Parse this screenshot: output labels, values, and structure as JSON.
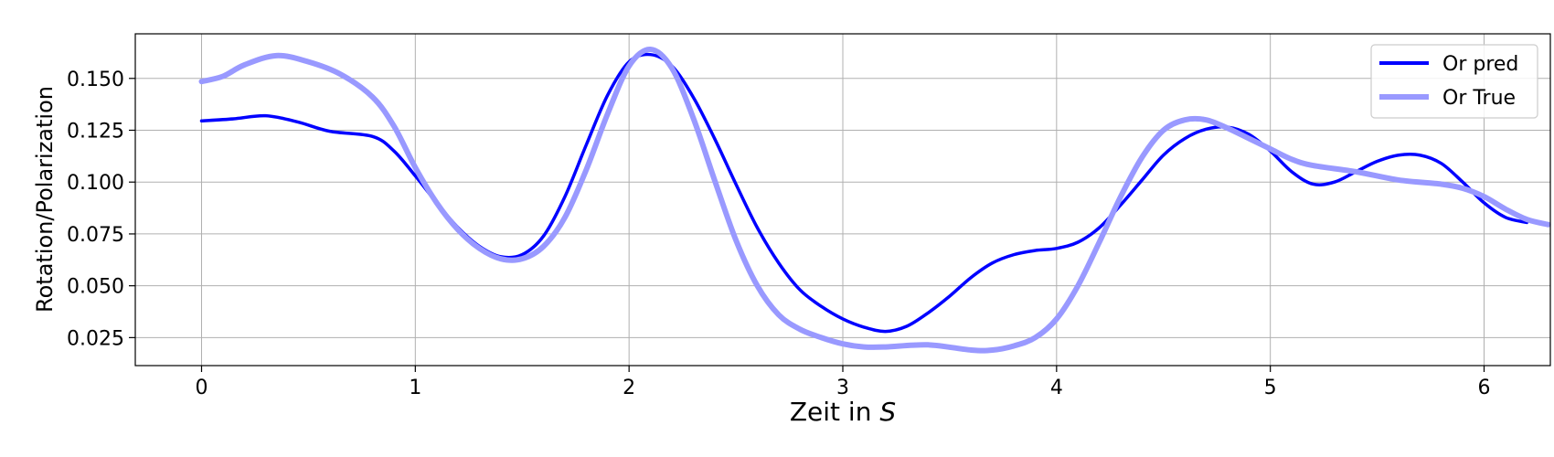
{
  "chart_data": {
    "type": "line",
    "xlabel": "Zeit in S",
    "ylabel": "Rotation/Polarization",
    "xlim": [
      -0.31,
      6.31
    ],
    "ylim": [
      0.0115,
      0.1715
    ],
    "xticks": [
      0,
      1,
      2,
      3,
      4,
      5,
      6
    ],
    "xtick_labels": [
      "0",
      "1",
      "2",
      "3",
      "4",
      "5",
      "6"
    ],
    "yticks": [
      0.025,
      0.05,
      0.075,
      0.1,
      0.125,
      0.15
    ],
    "ytick_labels": [
      "0.025",
      "0.050",
      "0.075",
      "0.100",
      "0.125",
      "0.150"
    ],
    "grid": true,
    "legend_position": "top-right",
    "series": [
      {
        "name": "Or pred",
        "color": "#0000ff",
        "x": [
          0,
          0.15,
          0.3,
          0.45,
          0.6,
          0.8,
          0.9,
          1.0,
          1.1,
          1.2,
          1.3,
          1.4,
          1.5,
          1.6,
          1.7,
          1.8,
          1.9,
          2.0,
          2.1,
          2.2,
          2.3,
          2.4,
          2.5,
          2.6,
          2.7,
          2.8,
          2.9,
          3.0,
          3.1,
          3.2,
          3.3,
          3.4,
          3.5,
          3.6,
          3.7,
          3.8,
          3.9,
          4.0,
          4.1,
          4.2,
          4.3,
          4.4,
          4.5,
          4.6,
          4.7,
          4.8,
          4.9,
          5.0,
          5.1,
          5.2,
          5.3,
          5.4,
          5.5,
          5.6,
          5.7,
          5.8,
          5.9,
          6.0,
          6.1,
          6.2
        ],
        "y": [
          0.1295,
          0.1305,
          0.132,
          0.129,
          0.1245,
          0.122,
          0.115,
          0.103,
          0.09,
          0.078,
          0.069,
          0.064,
          0.065,
          0.074,
          0.093,
          0.118,
          0.142,
          0.158,
          0.1615,
          0.156,
          0.141,
          0.121,
          0.099,
          0.078,
          0.061,
          0.048,
          0.04,
          0.034,
          0.03,
          0.028,
          0.0305,
          0.037,
          0.045,
          0.054,
          0.061,
          0.065,
          0.067,
          0.068,
          0.071,
          0.078,
          0.089,
          0.101,
          0.113,
          0.121,
          0.1255,
          0.1265,
          0.123,
          0.115,
          0.105,
          0.099,
          0.1,
          0.105,
          0.11,
          0.113,
          0.113,
          0.109,
          0.1,
          0.09,
          0.083,
          0.0805
        ]
      },
      {
        "name": "Or True",
        "color": "#9999ff",
        "x": [
          0,
          0.1,
          0.2,
          0.35,
          0.5,
          0.65,
          0.8,
          0.9,
          1.0,
          1.1,
          1.2,
          1.3,
          1.4,
          1.5,
          1.6,
          1.7,
          1.8,
          1.9,
          2.0,
          2.1,
          2.2,
          2.3,
          2.4,
          2.5,
          2.6,
          2.7,
          2.8,
          2.9,
          3.0,
          3.1,
          3.2,
          3.4,
          3.6,
          3.7,
          3.8,
          3.9,
          4.0,
          4.1,
          4.2,
          4.3,
          4.4,
          4.5,
          4.6,
          4.7,
          4.8,
          4.9,
          5.0,
          5.1,
          5.2,
          5.4,
          5.6,
          5.8,
          5.9,
          6.0,
          6.1,
          6.2,
          6.3
        ],
        "y": [
          0.1485,
          0.151,
          0.1565,
          0.161,
          0.158,
          0.152,
          0.141,
          0.127,
          0.107,
          0.09,
          0.077,
          0.068,
          0.063,
          0.063,
          0.069,
          0.083,
          0.106,
          0.133,
          0.156,
          0.164,
          0.155,
          0.131,
          0.101,
          0.072,
          0.05,
          0.036,
          0.029,
          0.025,
          0.022,
          0.0205,
          0.0205,
          0.0215,
          0.019,
          0.019,
          0.021,
          0.025,
          0.034,
          0.05,
          0.071,
          0.093,
          0.112,
          0.125,
          0.13,
          0.13,
          0.126,
          0.121,
          0.116,
          0.111,
          0.108,
          0.105,
          0.101,
          0.099,
          0.097,
          0.093,
          0.087,
          0.082,
          0.0795
        ]
      }
    ]
  }
}
